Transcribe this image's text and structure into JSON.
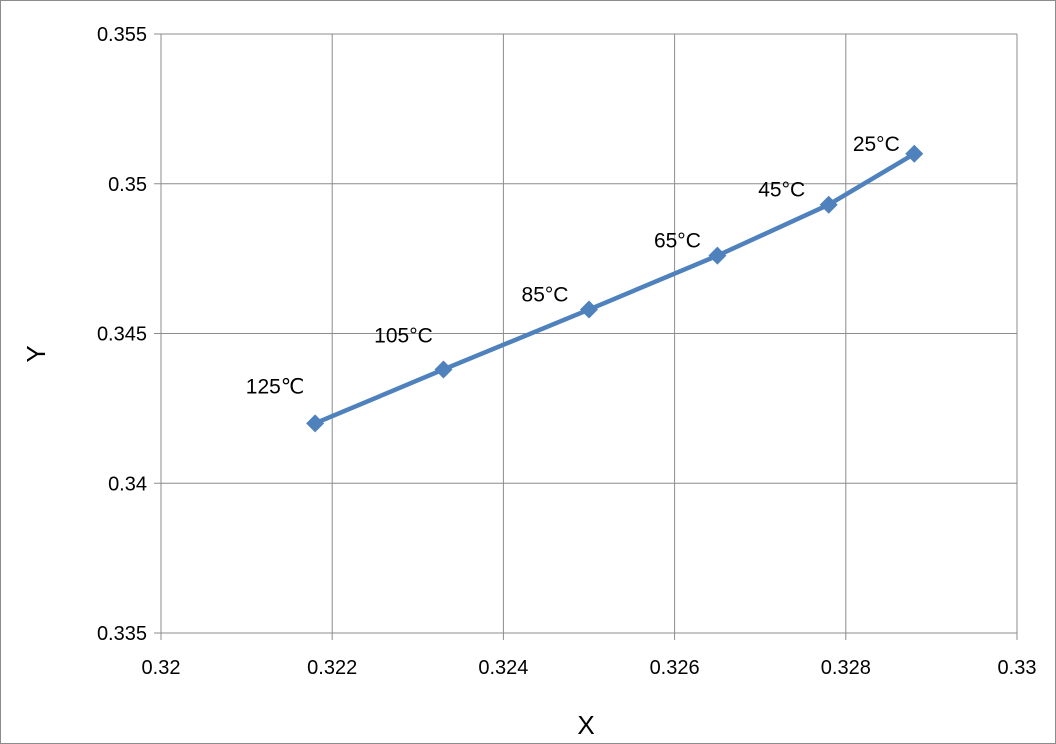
{
  "chart_data": {
    "type": "line",
    "title": "",
    "xlabel": "X",
    "ylabel": "Y",
    "xlim": [
      0.32,
      0.33
    ],
    "ylim": [
      0.335,
      0.355
    ],
    "x_ticks": [
      "0.32",
      "0.322",
      "0.324",
      "0.326",
      "0.328",
      "0.33"
    ],
    "y_ticks": [
      "0.335",
      "0.34",
      "0.345",
      "0.35",
      "0.355"
    ],
    "grid": true,
    "legend": "none",
    "series": [
      {
        "color": "#4f81bd",
        "marker": "diamond",
        "points": [
          {
            "x": 0.3218,
            "y": 0.342,
            "label": "125℃"
          },
          {
            "x": 0.3233,
            "y": 0.3438,
            "label": "105°C"
          },
          {
            "x": 0.325,
            "y": 0.3458,
            "label": "85°C"
          },
          {
            "x": 0.3265,
            "y": 0.3476,
            "label": "65°C"
          },
          {
            "x": 0.3278,
            "y": 0.3493,
            "label": "45°C"
          },
          {
            "x": 0.3288,
            "y": 0.351,
            "label": "25°C"
          }
        ]
      }
    ]
  }
}
